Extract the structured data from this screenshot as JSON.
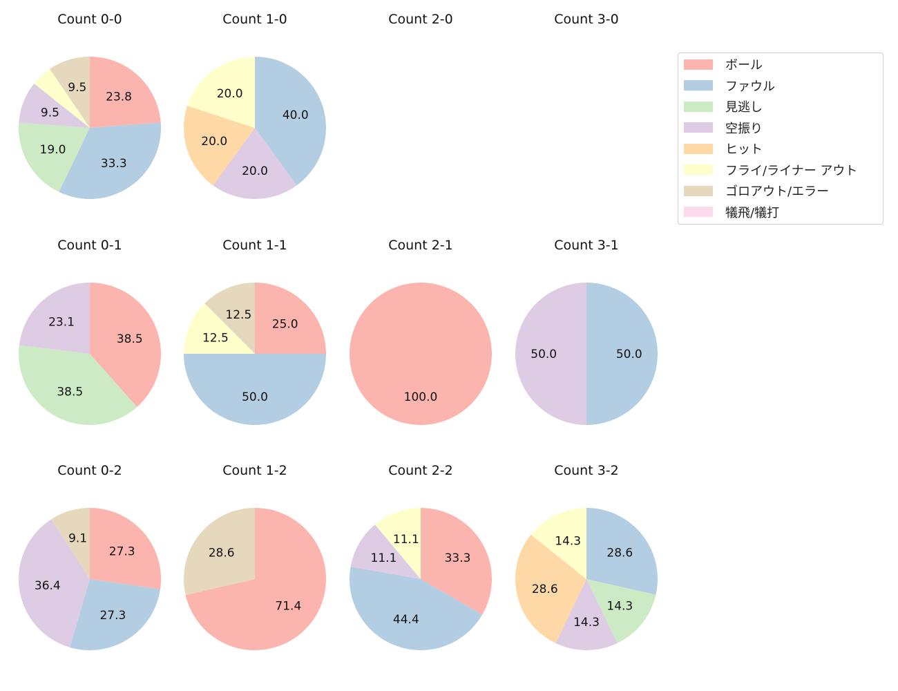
{
  "chart_data": {
    "type": "pie",
    "start_angle": 90,
    "direction": "clockwise",
    "categories": [
      "ボール",
      "ファウル",
      "見逃し",
      "空振り",
      "ヒット",
      "フライ/ライナー アウト",
      "ゴロアウト/エラー",
      "犠飛/犠打"
    ],
    "colors": [
      "#fbb4ae",
      "#b3cde3",
      "#ccebc5",
      "#decbe4",
      "#fed9a6",
      "#ffffcc",
      "#e5d8bd",
      "#fddaec"
    ],
    "legend_position": "right",
    "panels": [
      {
        "title": "Count 0-0",
        "values": [
          23.8,
          33.3,
          19.0,
          9.5,
          0,
          4.8,
          9.5,
          0
        ]
      },
      {
        "title": "Count 1-0",
        "values": [
          0,
          40.0,
          0,
          20.0,
          20.0,
          20.0,
          0,
          0
        ]
      },
      {
        "title": "Count 2-0",
        "values": []
      },
      {
        "title": "Count 3-0",
        "values": []
      },
      {
        "title": "Count 0-1",
        "values": [
          38.5,
          0,
          38.5,
          23.1,
          0,
          0,
          0,
          0
        ]
      },
      {
        "title": "Count 1-1",
        "values": [
          25.0,
          50.0,
          0,
          0,
          0,
          12.5,
          12.5,
          0
        ]
      },
      {
        "title": "Count 2-1",
        "values": [
          100.0,
          0,
          0,
          0,
          0,
          0,
          0,
          0
        ]
      },
      {
        "title": "Count 3-1",
        "values": [
          0,
          50.0,
          0,
          50.0,
          0,
          0,
          0,
          0
        ]
      },
      {
        "title": "Count 0-2",
        "values": [
          27.3,
          27.3,
          0,
          36.4,
          0,
          0,
          9.1,
          0
        ]
      },
      {
        "title": "Count 1-2",
        "values": [
          71.4,
          0,
          0,
          0,
          0,
          0,
          28.6,
          0
        ]
      },
      {
        "title": "Count 2-2",
        "values": [
          33.3,
          44.4,
          0,
          11.1,
          0,
          11.1,
          0,
          0
        ]
      },
      {
        "title": "Count 3-2",
        "values": [
          0,
          28.6,
          14.3,
          14.3,
          28.6,
          14.3,
          0,
          0
        ]
      }
    ]
  }
}
